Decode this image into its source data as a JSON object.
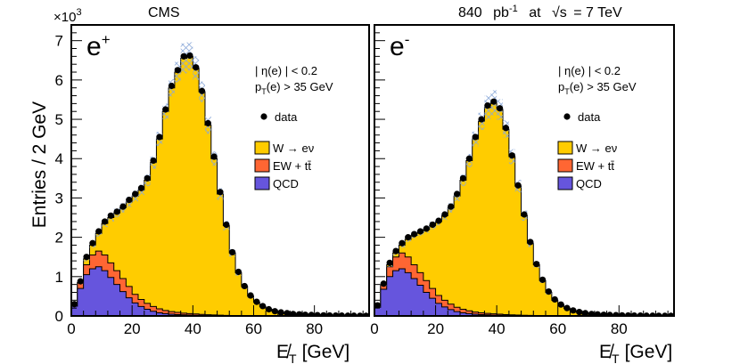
{
  "chart_data": {
    "type": "histogram-stack",
    "header": {
      "left": "CMS",
      "right_lumi": "840",
      "right_unit": "pb",
      "right_unit_exp": "-1",
      "right_at": "at",
      "right_sqrt": "√s",
      "right_energy": "= 7 TeV"
    },
    "ylabel": "Entries / 2 GeV",
    "y_multiplier": "×10",
    "y_multiplier_exp": "3",
    "xlabel": "E̸",
    "xlabel_sub": "T",
    "xlabel_unit": "[GeV]",
    "xlim": [
      0,
      98
    ],
    "ylim": [
      0,
      7.4
    ],
    "x_ticks": [
      "0",
      "20",
      "40",
      "60",
      "80"
    ],
    "y_ticks": [
      "0",
      "1",
      "2",
      "3",
      "4",
      "5",
      "6",
      "7"
    ],
    "bin_width": 2,
    "legend": {
      "cut_eta": "| η(e) | < 0.2",
      "cut_pt": "p",
      "cut_pt_sub": "T",
      "cut_pt_rest": "(e) > 35 GeV",
      "data": "data",
      "signal": "W → eν",
      "ewk": "EW + tt̄",
      "qcd": "QCD"
    },
    "colors": {
      "signal": "#ffcc00",
      "ewk": "#ff6633",
      "qcd": "#6655dd",
      "data": "#000000",
      "uncertainty": "#8aa8d8"
    },
    "panels": [
      {
        "label": "e",
        "label_sup": "+",
        "total": [
          0.28,
          0.85,
          1.45,
          1.8,
          2.1,
          2.35,
          2.5,
          2.62,
          2.75,
          2.9,
          3.05,
          3.2,
          3.45,
          3.9,
          4.5,
          5.2,
          5.8,
          6.2,
          6.55,
          6.6,
          6.3,
          5.7,
          4.85,
          4.0,
          3.1,
          2.3,
          1.6,
          1.1,
          0.75,
          0.5,
          0.35,
          0.24,
          0.17,
          0.12,
          0.08,
          0.06,
          0.05,
          0.04,
          0.03,
          0.02,
          0.02,
          0.015,
          0.01,
          0.01,
          0.008,
          0.006,
          0.005,
          0.004,
          0.003
        ],
        "ewk_qcd": [
          0.28,
          0.85,
          1.3,
          1.55,
          1.65,
          1.55,
          1.35,
          1.15,
          0.95,
          0.75,
          0.55,
          0.42,
          0.32,
          0.24,
          0.18,
          0.14,
          0.11,
          0.09,
          0.07,
          0.06,
          0.05,
          0.04,
          0.03,
          0.025,
          0.02,
          0.015,
          0.012,
          0.01,
          0.008,
          0.006,
          0.005,
          0.004,
          0.003,
          0.002,
          0.002,
          0.001,
          0.001,
          0.001,
          0.001,
          0.0,
          0.0,
          0.0,
          0.0,
          0.0,
          0.0,
          0.0,
          0.0,
          0.0,
          0.0
        ],
        "qcd": [
          0.25,
          0.7,
          1.05,
          1.2,
          1.25,
          1.15,
          0.98,
          0.8,
          0.62,
          0.46,
          0.33,
          0.24,
          0.17,
          0.12,
          0.08,
          0.06,
          0.045,
          0.035,
          0.028,
          0.022,
          0.018,
          0.014,
          0.011,
          0.009,
          0.007,
          0.005,
          0.004,
          0.003,
          0.002,
          0.002,
          0.001,
          0.001,
          0.001,
          0.0,
          0.0,
          0.0,
          0.0,
          0.0,
          0.0,
          0.0,
          0.0,
          0.0,
          0.0,
          0.0,
          0.0,
          0.0,
          0.0,
          0.0,
          0.0
        ],
        "data": [
          0.3,
          0.88,
          1.5,
          1.85,
          2.15,
          2.4,
          2.55,
          2.65,
          2.78,
          2.95,
          3.1,
          3.25,
          3.5,
          3.95,
          4.55,
          5.25,
          5.85,
          6.25,
          6.6,
          6.62,
          6.32,
          5.72,
          4.9,
          4.05,
          3.15,
          2.32,
          1.62,
          1.12,
          0.76,
          0.52,
          0.36,
          0.25,
          0.17,
          0.12,
          0.09,
          0.07,
          0.05,
          0.04,
          0.03,
          0.025,
          0.02,
          0.015,
          0.012,
          0.01,
          0.008,
          0.006,
          0.005,
          0.004,
          0.003
        ],
        "uncertainty": [
          0.02,
          0.04,
          0.06,
          0.07,
          0.08,
          0.09,
          0.1,
          0.11,
          0.12,
          0.13,
          0.14,
          0.14,
          0.15,
          0.16,
          0.18,
          0.2,
          0.22,
          0.26,
          0.38,
          0.36,
          0.3,
          0.26,
          0.22,
          0.18,
          0.15,
          0.12,
          0.1,
          0.08,
          0.06,
          0.05,
          0.04,
          0.03,
          0.02,
          0.02,
          0.01,
          0.01,
          0.01,
          0.01,
          0.01,
          0.0,
          0.0,
          0.0,
          0.0,
          0.0,
          0.0,
          0.0,
          0.0,
          0.0,
          0.0
        ]
      },
      {
        "label": "e",
        "label_sup": "-",
        "total": [
          0.25,
          0.8,
          1.3,
          1.6,
          1.8,
          1.95,
          2.05,
          2.12,
          2.2,
          2.3,
          2.4,
          2.55,
          2.75,
          3.05,
          3.45,
          3.95,
          4.5,
          4.95,
          5.3,
          5.42,
          5.25,
          4.75,
          4.05,
          3.3,
          2.55,
          1.85,
          1.3,
          0.9,
          0.6,
          0.4,
          0.28,
          0.19,
          0.13,
          0.09,
          0.07,
          0.05,
          0.04,
          0.03,
          0.02,
          0.02,
          0.015,
          0.01,
          0.01,
          0.008,
          0.006,
          0.005,
          0.004,
          0.003,
          0.002
        ],
        "ewk_qcd": [
          0.25,
          0.8,
          1.25,
          1.5,
          1.6,
          1.5,
          1.3,
          1.1,
          0.9,
          0.7,
          0.52,
          0.4,
          0.3,
          0.22,
          0.17,
          0.13,
          0.1,
          0.08,
          0.065,
          0.055,
          0.045,
          0.035,
          0.028,
          0.022,
          0.017,
          0.013,
          0.01,
          0.008,
          0.006,
          0.005,
          0.004,
          0.003,
          0.002,
          0.002,
          0.001,
          0.001,
          0.001,
          0.0,
          0.0,
          0.0,
          0.0,
          0.0,
          0.0,
          0.0,
          0.0,
          0.0,
          0.0,
          0.0,
          0.0
        ],
        "qcd": [
          0.22,
          0.68,
          1.0,
          1.15,
          1.2,
          1.1,
          0.95,
          0.78,
          0.6,
          0.45,
          0.32,
          0.23,
          0.16,
          0.11,
          0.08,
          0.06,
          0.045,
          0.035,
          0.027,
          0.021,
          0.017,
          0.013,
          0.01,
          0.008,
          0.006,
          0.005,
          0.004,
          0.003,
          0.002,
          0.001,
          0.001,
          0.001,
          0.0,
          0.0,
          0.0,
          0.0,
          0.0,
          0.0,
          0.0,
          0.0,
          0.0,
          0.0,
          0.0,
          0.0,
          0.0,
          0.0,
          0.0,
          0.0,
          0.0
        ],
        "data": [
          0.27,
          0.82,
          1.35,
          1.65,
          1.85,
          2.0,
          2.08,
          2.15,
          2.22,
          2.32,
          2.42,
          2.58,
          2.78,
          3.1,
          3.5,
          4.0,
          4.55,
          5.0,
          5.35,
          5.45,
          5.28,
          4.78,
          4.08,
          3.32,
          2.58,
          1.88,
          1.32,
          0.92,
          0.62,
          0.42,
          0.29,
          0.2,
          0.14,
          0.1,
          0.07,
          0.05,
          0.04,
          0.03,
          0.025,
          0.02,
          0.015,
          0.012,
          0.01,
          0.008,
          0.006,
          0.005,
          0.004,
          0.003,
          0.002
        ],
        "uncertainty": [
          0.02,
          0.04,
          0.06,
          0.06,
          0.07,
          0.07,
          0.08,
          0.08,
          0.09,
          0.1,
          0.1,
          0.11,
          0.12,
          0.13,
          0.15,
          0.17,
          0.19,
          0.22,
          0.3,
          0.32,
          0.26,
          0.22,
          0.19,
          0.16,
          0.13,
          0.1,
          0.08,
          0.06,
          0.05,
          0.04,
          0.03,
          0.02,
          0.02,
          0.01,
          0.01,
          0.01,
          0.01,
          0.0,
          0.0,
          0.0,
          0.0,
          0.0,
          0.0,
          0.0,
          0.0,
          0.0,
          0.0,
          0.0,
          0.0
        ]
      }
    ]
  }
}
